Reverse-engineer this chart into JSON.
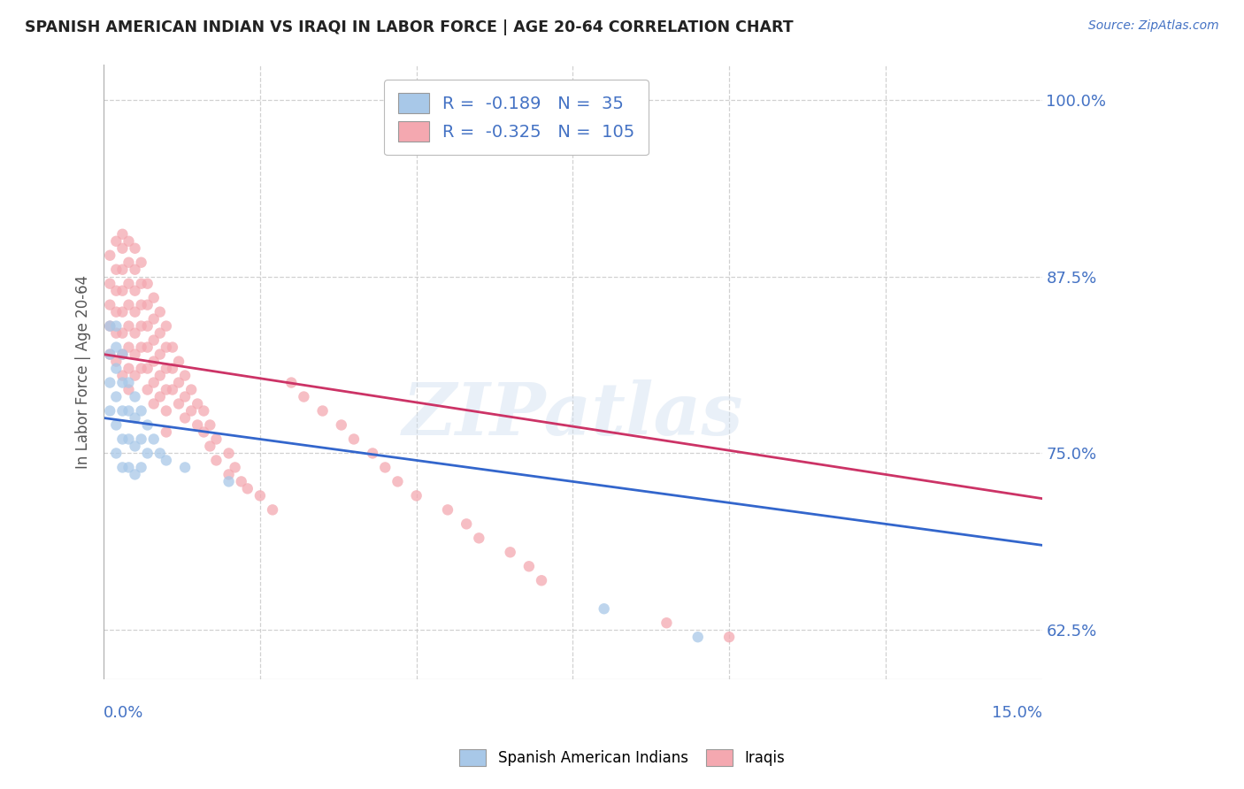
{
  "title": "SPANISH AMERICAN INDIAN VS IRAQI IN LABOR FORCE | AGE 20-64 CORRELATION CHART",
  "source_text": "Source: ZipAtlas.com",
  "ylabel": "In Labor Force | Age 20-64",
  "xmin": 0.0,
  "xmax": 0.15,
  "ymin": 0.59,
  "ymax": 1.025,
  "yticks": [
    0.625,
    0.75,
    0.875,
    1.0
  ],
  "ytick_labels": [
    "62.5%",
    "75.0%",
    "87.5%",
    "100.0%"
  ],
  "blue_R": -0.189,
  "blue_N": 35,
  "pink_R": -0.325,
  "pink_N": 105,
  "blue_color": "#a8c8e8",
  "pink_color": "#f4a8b0",
  "blue_line_color": "#3366cc",
  "pink_line_color": "#cc3366",
  "legend_label_blue": "Spanish American Indians",
  "legend_label_pink": "Iraqis",
  "watermark": "ZIPatlas",
  "background_color": "#ffffff",
  "grid_color": "#cccccc",
  "blue_line_y0": 0.775,
  "blue_line_y1": 0.685,
  "pink_line_y0": 0.82,
  "pink_line_y1": 0.718,
  "blue_x": [
    0.001,
    0.001,
    0.001,
    0.001,
    0.002,
    0.002,
    0.002,
    0.002,
    0.002,
    0.002,
    0.003,
    0.003,
    0.003,
    0.003,
    0.003,
    0.004,
    0.004,
    0.004,
    0.004,
    0.005,
    0.005,
    0.005,
    0.005,
    0.006,
    0.006,
    0.006,
    0.007,
    0.007,
    0.008,
    0.009,
    0.01,
    0.013,
    0.02,
    0.08,
    0.095
  ],
  "blue_y": [
    0.84,
    0.82,
    0.8,
    0.78,
    0.84,
    0.825,
    0.81,
    0.79,
    0.77,
    0.75,
    0.82,
    0.8,
    0.78,
    0.76,
    0.74,
    0.8,
    0.78,
    0.76,
    0.74,
    0.79,
    0.775,
    0.755,
    0.735,
    0.78,
    0.76,
    0.74,
    0.77,
    0.75,
    0.76,
    0.75,
    0.745,
    0.74,
    0.73,
    0.64,
    0.62
  ],
  "pink_x": [
    0.001,
    0.001,
    0.001,
    0.001,
    0.001,
    0.002,
    0.002,
    0.002,
    0.002,
    0.002,
    0.002,
    0.003,
    0.003,
    0.003,
    0.003,
    0.003,
    0.003,
    0.003,
    0.003,
    0.004,
    0.004,
    0.004,
    0.004,
    0.004,
    0.004,
    0.004,
    0.004,
    0.005,
    0.005,
    0.005,
    0.005,
    0.005,
    0.005,
    0.005,
    0.006,
    0.006,
    0.006,
    0.006,
    0.006,
    0.006,
    0.007,
    0.007,
    0.007,
    0.007,
    0.007,
    0.007,
    0.008,
    0.008,
    0.008,
    0.008,
    0.008,
    0.008,
    0.009,
    0.009,
    0.009,
    0.009,
    0.009,
    0.01,
    0.01,
    0.01,
    0.01,
    0.01,
    0.01,
    0.011,
    0.011,
    0.011,
    0.012,
    0.012,
    0.012,
    0.013,
    0.013,
    0.013,
    0.014,
    0.014,
    0.015,
    0.015,
    0.016,
    0.016,
    0.017,
    0.017,
    0.018,
    0.018,
    0.02,
    0.02,
    0.021,
    0.022,
    0.023,
    0.025,
    0.027,
    0.03,
    0.032,
    0.035,
    0.038,
    0.04,
    0.043,
    0.045,
    0.047,
    0.05,
    0.055,
    0.058,
    0.06,
    0.065,
    0.068,
    0.07,
    0.09,
    0.1
  ],
  "pink_y": [
    0.89,
    0.87,
    0.855,
    0.84,
    0.82,
    0.9,
    0.88,
    0.865,
    0.85,
    0.835,
    0.815,
    0.905,
    0.895,
    0.88,
    0.865,
    0.85,
    0.835,
    0.82,
    0.805,
    0.9,
    0.885,
    0.87,
    0.855,
    0.84,
    0.825,
    0.81,
    0.795,
    0.895,
    0.88,
    0.865,
    0.85,
    0.835,
    0.82,
    0.805,
    0.885,
    0.87,
    0.855,
    0.84,
    0.825,
    0.81,
    0.87,
    0.855,
    0.84,
    0.825,
    0.81,
    0.795,
    0.86,
    0.845,
    0.83,
    0.815,
    0.8,
    0.785,
    0.85,
    0.835,
    0.82,
    0.805,
    0.79,
    0.84,
    0.825,
    0.81,
    0.795,
    0.78,
    0.765,
    0.825,
    0.81,
    0.795,
    0.815,
    0.8,
    0.785,
    0.805,
    0.79,
    0.775,
    0.795,
    0.78,
    0.785,
    0.77,
    0.78,
    0.765,
    0.77,
    0.755,
    0.76,
    0.745,
    0.75,
    0.735,
    0.74,
    0.73,
    0.725,
    0.72,
    0.71,
    0.8,
    0.79,
    0.78,
    0.77,
    0.76,
    0.75,
    0.74,
    0.73,
    0.72,
    0.71,
    0.7,
    0.69,
    0.68,
    0.67,
    0.66,
    0.63,
    0.62
  ]
}
